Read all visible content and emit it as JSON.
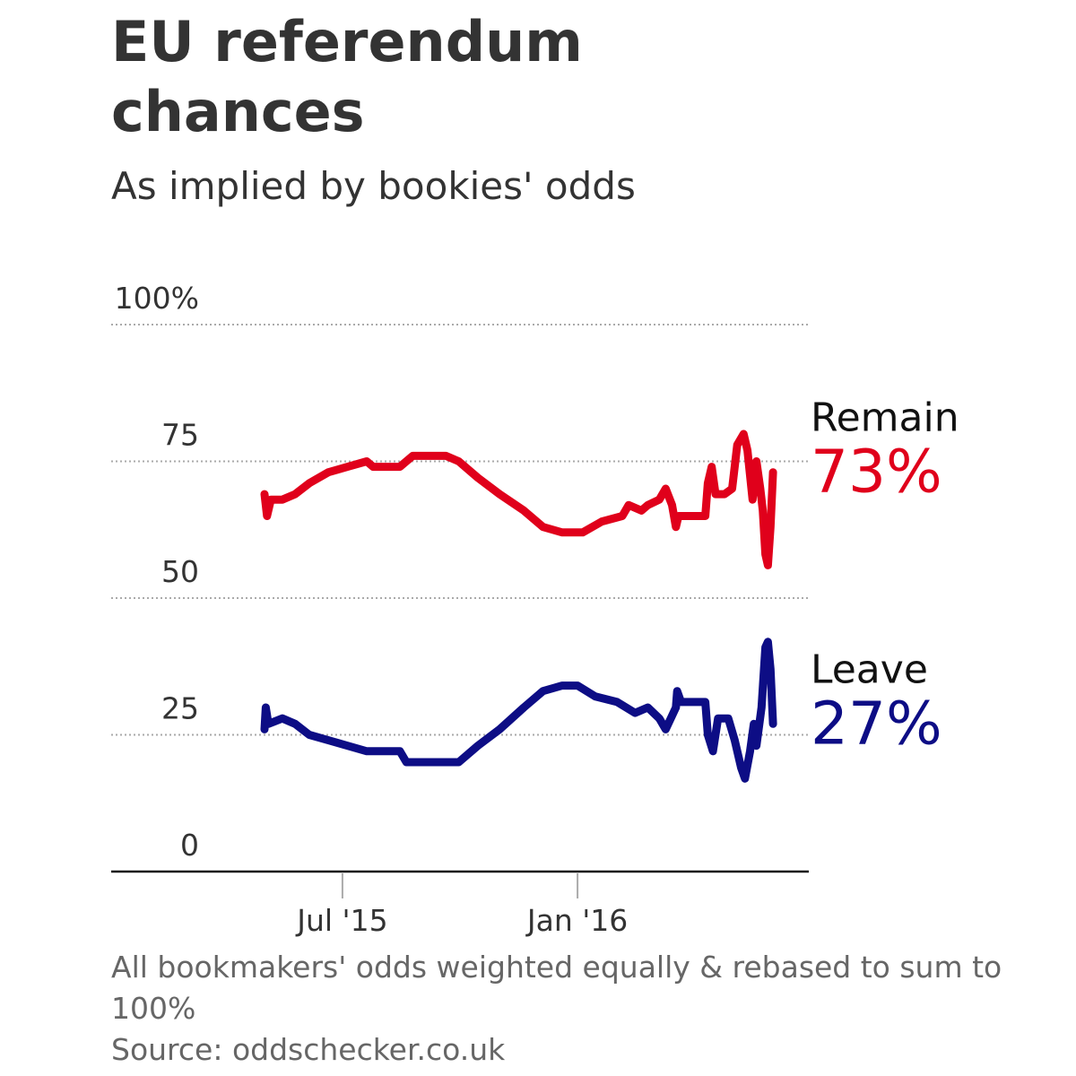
{
  "chart_data": {
    "type": "line",
    "title_line1": "EU referendum",
    "title_line2": "chances",
    "subtitle": "As implied by bookies' odds",
    "ylim": [
      0,
      100
    ],
    "y_ticks": [
      {
        "value": 100,
        "label": "100%"
      },
      {
        "value": 75,
        "label": "75"
      },
      {
        "value": 50,
        "label": "50"
      },
      {
        "value": 25,
        "label": "25"
      },
      {
        "value": 0,
        "label": "0"
      }
    ],
    "x_ticks": [
      {
        "date": "2015-07-01",
        "label": "Jul '15"
      },
      {
        "date": "2016-01-01",
        "label": "Jan '16"
      }
    ],
    "xlim": [
      "2015-01-01",
      "2016-06-30"
    ],
    "series": [
      {
        "name": "Remain",
        "final_label": "73%",
        "color": "#e0001b",
        "points": [
          [
            "2015-05-01",
            69
          ],
          [
            "2015-05-03",
            65
          ],
          [
            "2015-05-06",
            68
          ],
          [
            "2015-05-15",
            68
          ],
          [
            "2015-05-25",
            69
          ],
          [
            "2015-06-05",
            71
          ],
          [
            "2015-06-20",
            73
          ],
          [
            "2015-07-05",
            74
          ],
          [
            "2015-07-20",
            75
          ],
          [
            "2015-07-25",
            74
          ],
          [
            "2015-08-15",
            74
          ],
          [
            "2015-08-25",
            76
          ],
          [
            "2015-09-20",
            76
          ],
          [
            "2015-09-30",
            75
          ],
          [
            "2015-10-15",
            72
          ],
          [
            "2015-11-01",
            69
          ],
          [
            "2015-11-20",
            66
          ],
          [
            "2015-12-05",
            63
          ],
          [
            "2015-12-20",
            62
          ],
          [
            "2016-01-05",
            62
          ],
          [
            "2016-01-20",
            64
          ],
          [
            "2016-02-05",
            65
          ],
          [
            "2016-02-10",
            67
          ],
          [
            "2016-02-20",
            66
          ],
          [
            "2016-02-25",
            67
          ],
          [
            "2016-03-05",
            68
          ],
          [
            "2016-03-10",
            70
          ],
          [
            "2016-03-15",
            67
          ],
          [
            "2016-03-18",
            63
          ],
          [
            "2016-03-20",
            65
          ],
          [
            "2016-04-05",
            65
          ],
          [
            "2016-04-10",
            65
          ],
          [
            "2016-04-12",
            71
          ],
          [
            "2016-04-15",
            74
          ],
          [
            "2016-04-18",
            69
          ],
          [
            "2016-04-25",
            69
          ],
          [
            "2016-05-01",
            70
          ],
          [
            "2016-05-05",
            78
          ],
          [
            "2016-05-10",
            80
          ],
          [
            "2016-05-13",
            77
          ],
          [
            "2016-05-17",
            68
          ],
          [
            "2016-05-20",
            75
          ],
          [
            "2016-05-23",
            70
          ],
          [
            "2016-05-25",
            66
          ],
          [
            "2016-05-27",
            58
          ],
          [
            "2016-05-29",
            56
          ],
          [
            "2016-05-31",
            63
          ],
          [
            "2016-06-02",
            73
          ]
        ]
      },
      {
        "name": "Leave",
        "final_label": "27%",
        "color": "#0d0d85",
        "points": [
          [
            "2015-05-01",
            26
          ],
          [
            "2015-05-02",
            30
          ],
          [
            "2015-05-04",
            27
          ],
          [
            "2015-05-15",
            28
          ],
          [
            "2015-05-25",
            27
          ],
          [
            "2015-06-05",
            25
          ],
          [
            "2015-06-20",
            24
          ],
          [
            "2015-07-05",
            23
          ],
          [
            "2015-07-20",
            22
          ],
          [
            "2015-08-05",
            22
          ],
          [
            "2015-08-15",
            22
          ],
          [
            "2015-08-20",
            20
          ],
          [
            "2015-09-10",
            20
          ],
          [
            "2015-09-30",
            20
          ],
          [
            "2015-10-15",
            23
          ],
          [
            "2015-11-01",
            26
          ],
          [
            "2015-11-20",
            30
          ],
          [
            "2015-12-05",
            33
          ],
          [
            "2015-12-20",
            34
          ],
          [
            "2016-01-01",
            34
          ],
          [
            "2016-01-15",
            32
          ],
          [
            "2016-02-01",
            31
          ],
          [
            "2016-02-15",
            29
          ],
          [
            "2016-02-25",
            30
          ],
          [
            "2016-03-05",
            28
          ],
          [
            "2016-03-10",
            26
          ],
          [
            "2016-03-18",
            30
          ],
          [
            "2016-03-19",
            33
          ],
          [
            "2016-03-22",
            31
          ],
          [
            "2016-04-05",
            31
          ],
          [
            "2016-04-10",
            31
          ],
          [
            "2016-04-12",
            25
          ],
          [
            "2016-04-16",
            22
          ],
          [
            "2016-04-20",
            28
          ],
          [
            "2016-04-28",
            28
          ],
          [
            "2016-05-03",
            24
          ],
          [
            "2016-05-08",
            19
          ],
          [
            "2016-05-11",
            17
          ],
          [
            "2016-05-15",
            22
          ],
          [
            "2016-05-18",
            27
          ],
          [
            "2016-05-20",
            23
          ],
          [
            "2016-05-24",
            30
          ],
          [
            "2016-05-27",
            41
          ],
          [
            "2016-05-29",
            42
          ],
          [
            "2016-05-31",
            37
          ],
          [
            "2016-06-02",
            27
          ]
        ]
      }
    ],
    "footer_note": "All bookmakers' odds weighted equally & rebased to sum to 100%",
    "source": "Source: oddschecker.co.uk"
  }
}
